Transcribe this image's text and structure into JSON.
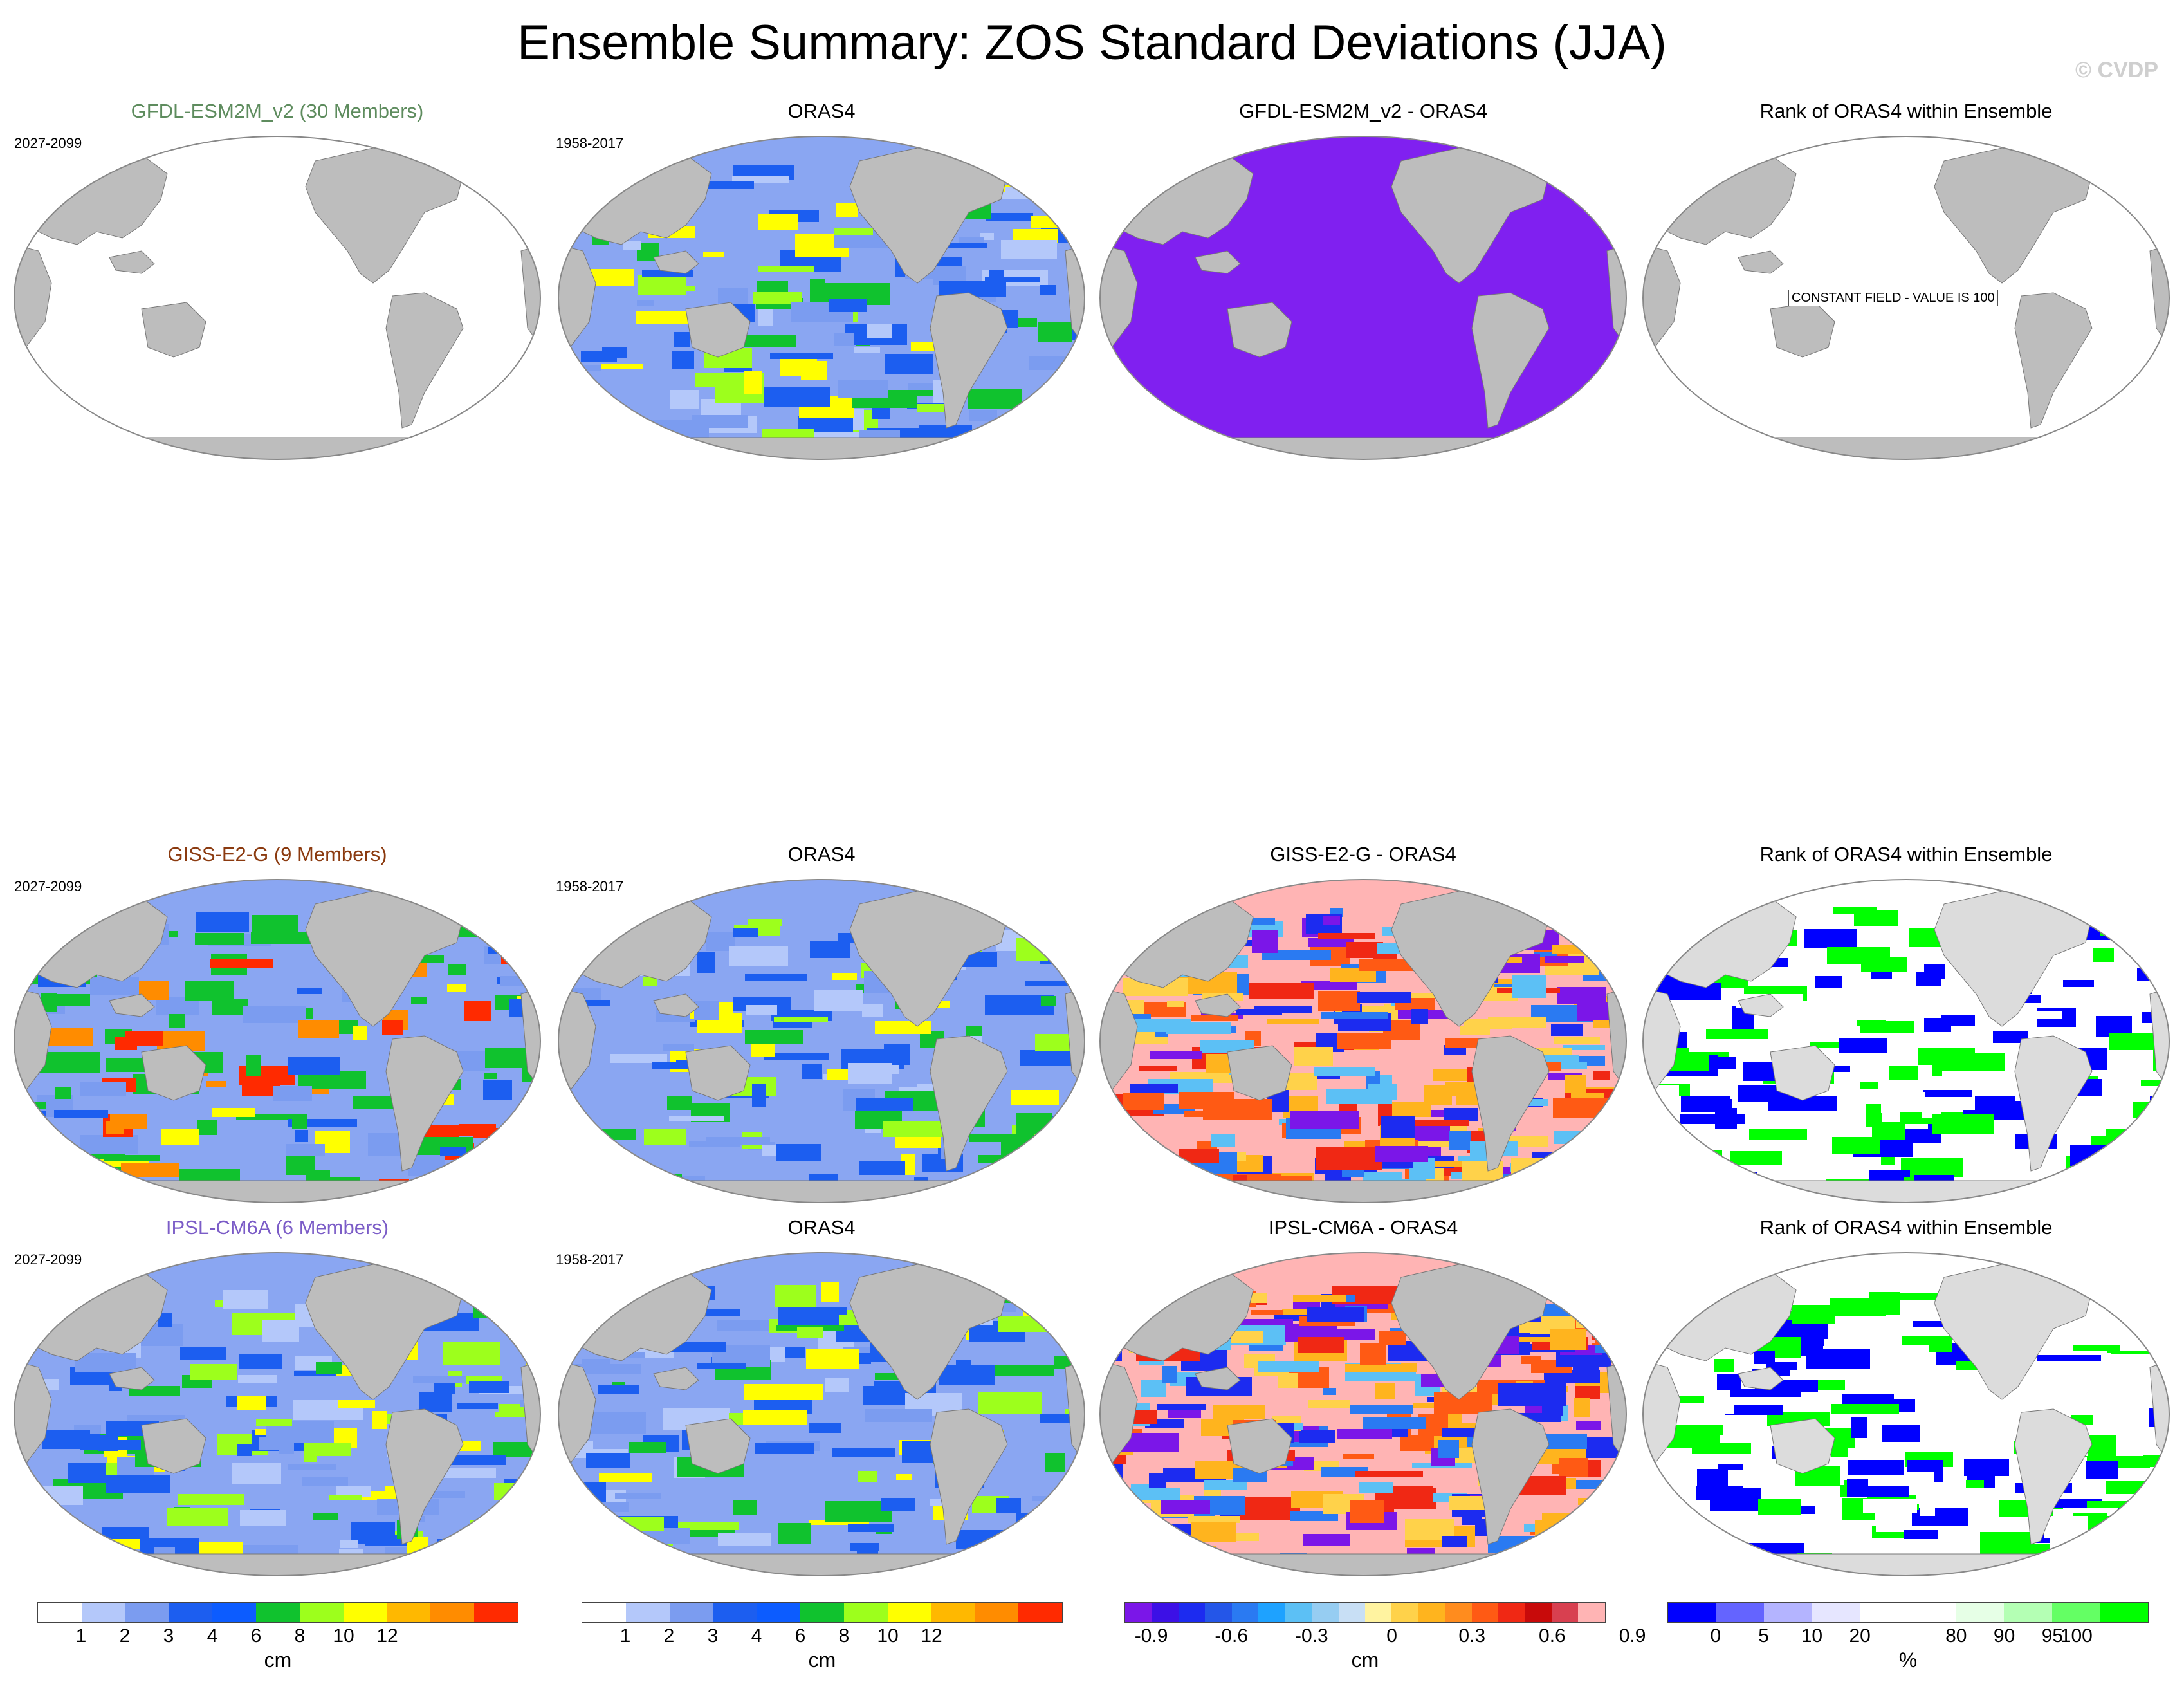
{
  "title": "Ensemble Summary: ZOS Standard Deviations (JJA)",
  "credit": "© CVDP",
  "rows": [
    {
      "ensemble_title": "GFDL-ESM2M_v2 (30 Members)",
      "ensemble_color": "#5e8c5e",
      "ensemble_period": "2027-2099",
      "obs_title": "ORAS4",
      "obs_period": "1958-2017",
      "diff_title": "GFDL-ESM2M_v2 - ORAS4",
      "rank_title": "Rank of ORAS4 within Ensemble",
      "rank_note": "CONSTANT FIELD - VALUE IS 100"
    },
    {
      "ensemble_title": "GISS-E2-G (9 Members)",
      "ensemble_color": "#8b3a0f",
      "ensemble_period": "2027-2099",
      "obs_title": "ORAS4",
      "obs_period": "1958-2017",
      "diff_title": "GISS-E2-G - ORAS4",
      "rank_title": "Rank of ORAS4 within Ensemble",
      "rank_note": ""
    },
    {
      "ensemble_title": "IPSL-CM6A (6 Members)",
      "ensemble_color": "#7b5cc7",
      "ensemble_period": "2027-2099",
      "obs_title": "ORAS4",
      "obs_period": "1958-2017",
      "diff_title": "IPSL-CM6A - ORAS4",
      "rank_title": "Rank of ORAS4 within Ensemble",
      "rank_note": ""
    }
  ],
  "colorbars": {
    "stddev": {
      "colors": [
        "#ffffff",
        "#b4c8fa",
        "#7b9cf0",
        "#1c5ef0",
        "#0c5cff",
        "#10c22e",
        "#9dff1c",
        "#ffff00",
        "#ffb800",
        "#ff8c00",
        "#ff2a00"
      ],
      "ticks": [
        "1",
        "2",
        "3",
        "4",
        "6",
        "8",
        "10",
        "12"
      ],
      "unit": "cm"
    },
    "diff": {
      "colors": [
        "#7b16e8",
        "#3c10e6",
        "#1c2bf0",
        "#2456e8",
        "#2a7af2",
        "#1ea2ff",
        "#5cc0f5",
        "#96cdf2",
        "#c8dff5",
        "#fff3a0",
        "#ffd24a",
        "#ffb41e",
        "#ff8c1e",
        "#ff5a14",
        "#f02814",
        "#c80a0a",
        "#d84050",
        "#ffb4b4"
      ],
      "ticks": [
        "-0.9",
        "-0.6",
        "-0.3",
        "0",
        "0.3",
        "0.6",
        "0.9"
      ],
      "unit": "cm"
    },
    "rank": {
      "colors": [
        "#0000ff",
        "#6464ff",
        "#b4b4ff",
        "#e6e6ff",
        "#ffffff",
        "#ffffff",
        "#e6ffe6",
        "#b4ffb4",
        "#64ff64",
        "#00ff00"
      ],
      "ticks": [
        "0",
        "5",
        "10",
        "20",
        "80",
        "90",
        "95",
        "100"
      ],
      "unit": "%"
    }
  }
}
